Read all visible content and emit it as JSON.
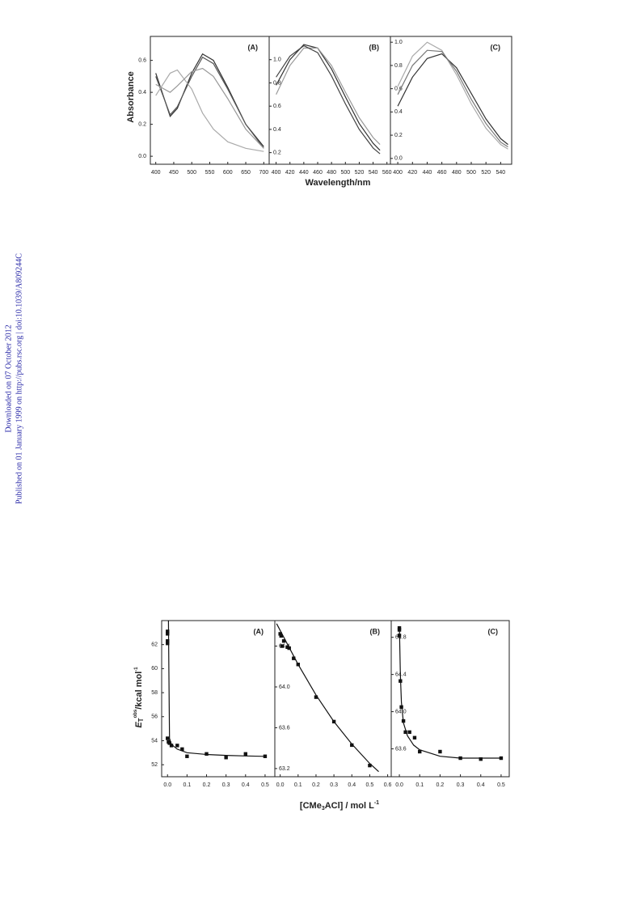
{
  "side_note": [
    "Downloaded on 07 October 2012",
    "Published on 01 January 1999 on http://pubs.rsc.org | doi:10.1039/A809244C"
  ],
  "figures": [
    {
      "y_label": "Absorbance",
      "x_label": "Wavelength/nm"
    },
    {
      "y_label": [
        "E",
        "T",
        "obs",
        "/kcal mol",
        "-1"
      ],
      "x_label": [
        "[CMe",
        "3",
        "ACl] / mol L",
        "-1"
      ]
    }
  ],
  "chart_data": [
    {
      "type": "line",
      "label": "(A)",
      "x": [
        400,
        440,
        460,
        500,
        530,
        560,
        600,
        650,
        700
      ],
      "series": [
        {
          "color": "#333333",
          "values": [
            0.52,
            0.25,
            0.3,
            0.52,
            0.64,
            0.6,
            0.43,
            0.2,
            0.06
          ]
        },
        {
          "color": "#555555",
          "values": [
            0.5,
            0.26,
            0.31,
            0.5,
            0.62,
            0.58,
            0.42,
            0.2,
            0.05
          ]
        },
        {
          "color": "#aaaaaa",
          "values": [
            0.38,
            0.52,
            0.54,
            0.42,
            0.27,
            0.17,
            0.09,
            0.05,
            0.03
          ]
        },
        {
          "color": "#999999",
          "values": [
            0.45,
            0.4,
            0.44,
            0.53,
            0.55,
            0.5,
            0.36,
            0.17,
            0.05
          ]
        }
      ],
      "xlim": [
        385,
        715
      ],
      "ylim": [
        -0.05,
        0.75
      ],
      "xticks": [
        400,
        450,
        500,
        550,
        600,
        650,
        700
      ],
      "yticks": [
        {
          "value": 0,
          "label": "0.0"
        },
        0.2,
        0.4,
        0.6
      ]
    },
    {
      "type": "line",
      "label": "(B)",
      "x": [
        400,
        420,
        440,
        460,
        480,
        500,
        520,
        540,
        550
      ],
      "series": [
        {
          "color": "#333333",
          "values": [
            0.78,
            1.0,
            1.13,
            1.1,
            0.92,
            0.68,
            0.45,
            0.28,
            0.22
          ]
        },
        {
          "color": "#999999",
          "values": [
            0.7,
            0.95,
            1.1,
            1.1,
            0.95,
            0.72,
            0.5,
            0.33,
            0.27
          ]
        },
        {
          "color": "#444444",
          "values": [
            0.85,
            1.03,
            1.12,
            1.06,
            0.86,
            0.62,
            0.4,
            0.24,
            0.19
          ]
        }
      ],
      "xlim": [
        390,
        565
      ],
      "ylim": [
        0.1,
        1.2
      ],
      "xticks": [
        400,
        420,
        440,
        460,
        480,
        500,
        520,
        540,
        560
      ],
      "yticks": [
        0.2,
        0.4,
        0.6,
        0.8,
        {
          "value": 1,
          "label": "1.0"
        }
      ]
    },
    {
      "type": "line",
      "label": "(C)",
      "x": [
        400,
        420,
        440,
        460,
        480,
        500,
        520,
        540,
        550
      ],
      "series": [
        {
          "color": "#aaaaaa",
          "values": [
            0.62,
            0.88,
            1.0,
            0.93,
            0.72,
            0.47,
            0.26,
            0.12,
            0.08
          ]
        },
        {
          "color": "#333333",
          "values": [
            0.45,
            0.7,
            0.86,
            0.9,
            0.78,
            0.56,
            0.34,
            0.17,
            0.12
          ]
        },
        {
          "color": "#777777",
          "values": [
            0.55,
            0.8,
            0.93,
            0.92,
            0.75,
            0.51,
            0.3,
            0.14,
            0.1
          ]
        }
      ],
      "xlim": [
        390,
        555
      ],
      "ylim": [
        -0.05,
        1.05
      ],
      "xticks": [
        400,
        420,
        440,
        460,
        480,
        500,
        520,
        540
      ],
      "yticks": [
        {
          "value": 0,
          "label": "0.0"
        },
        0.2,
        0.4,
        0.6,
        0.8,
        {
          "value": 1,
          "label": "1.0"
        }
      ]
    },
    {
      "type": "scatter",
      "label": "(A)",
      "x": [
        0,
        0,
        0,
        0,
        0,
        0.005,
        0.01,
        0.02,
        0.05,
        0.075,
        0.1,
        0.2,
        0.3,
        0.4,
        0.5
      ],
      "values": [
        63.1,
        62.9,
        62.3,
        62.1,
        54.2,
        53.9,
        53.8,
        53.6,
        53.6,
        53.3,
        52.7,
        52.9,
        52.6,
        52.9,
        52.7
      ],
      "fit": {
        "x": [
          0.005,
          0.007,
          0.01,
          0.02,
          0.05,
          0.1,
          0.2,
          0.3,
          0.4,
          0.5
        ],
        "values": [
          64,
          60,
          54.2,
          53.7,
          53.3,
          53.0,
          52.85,
          52.78,
          52.73,
          52.7
        ]
      },
      "xlim": [
        -0.03,
        0.55
      ],
      "ylim": [
        51,
        64
      ],
      "xticks": [
        {
          "value": 0,
          "label": "0.0"
        },
        0.1,
        0.2,
        0.3,
        0.4,
        0.5
      ],
      "yticks": [
        52,
        54,
        56,
        58,
        60,
        62
      ]
    },
    {
      "type": "scatter",
      "label": "(B)",
      "x": [
        0,
        0.005,
        0.01,
        0.02,
        0.04,
        0.05,
        0.075,
        0.1,
        0.2,
        0.3,
        0.4,
        0.5
      ],
      "values": [
        64.52,
        64.5,
        64.4,
        64.45,
        64.39,
        64.38,
        64.28,
        64.22,
        63.9,
        63.66,
        63.43,
        63.23
      ],
      "fit": {
        "x": [
          -0.02,
          0.1,
          0.2,
          0.3,
          0.4,
          0.5,
          0.55
        ],
        "values": [
          64.62,
          64.22,
          63.92,
          63.66,
          63.44,
          63.25,
          63.17
        ]
      },
      "xlim": [
        -0.03,
        0.62
      ],
      "ylim": [
        63.12,
        64.65
      ],
      "xticks": [
        {
          "value": 0,
          "label": "0.0"
        },
        0.1,
        0.2,
        0.3,
        0.4,
        0.5,
        0.6
      ],
      "yticks": [
        63.2,
        63.6,
        {
          "value": 64,
          "label": "64.0"
        },
        64.4
      ]
    },
    {
      "type": "scatter",
      "label": "(C)",
      "x": [
        0,
        0,
        0,
        0.005,
        0.01,
        0.02,
        0.03,
        0.05,
        0.075,
        0.1,
        0.2,
        0.3,
        0.4,
        0.5
      ],
      "values": [
        64.9,
        64.88,
        64.82,
        64.33,
        64.05,
        63.9,
        63.78,
        63.78,
        63.72,
        63.57,
        63.57,
        63.5,
        63.49,
        63.5
      ],
      "fit": {
        "x": [
          0,
          0.005,
          0.01,
          0.02,
          0.04,
          0.07,
          0.1,
          0.2,
          0.3,
          0.4,
          0.5
        ],
        "values": [
          64.92,
          64.4,
          64.1,
          63.88,
          63.74,
          63.64,
          63.59,
          63.52,
          63.5,
          63.5,
          63.5
        ]
      },
      "xlim": [
        -0.04,
        0.54
      ],
      "ylim": [
        63.3,
        64.98
      ],
      "xticks": [
        {
          "value": 0,
          "label": "0.0"
        },
        0.1,
        0.2,
        0.3,
        0.4,
        0.5
      ],
      "yticks": [
        63.6,
        {
          "value": 64,
          "label": "64.0"
        },
        64.4,
        64.8
      ]
    }
  ]
}
